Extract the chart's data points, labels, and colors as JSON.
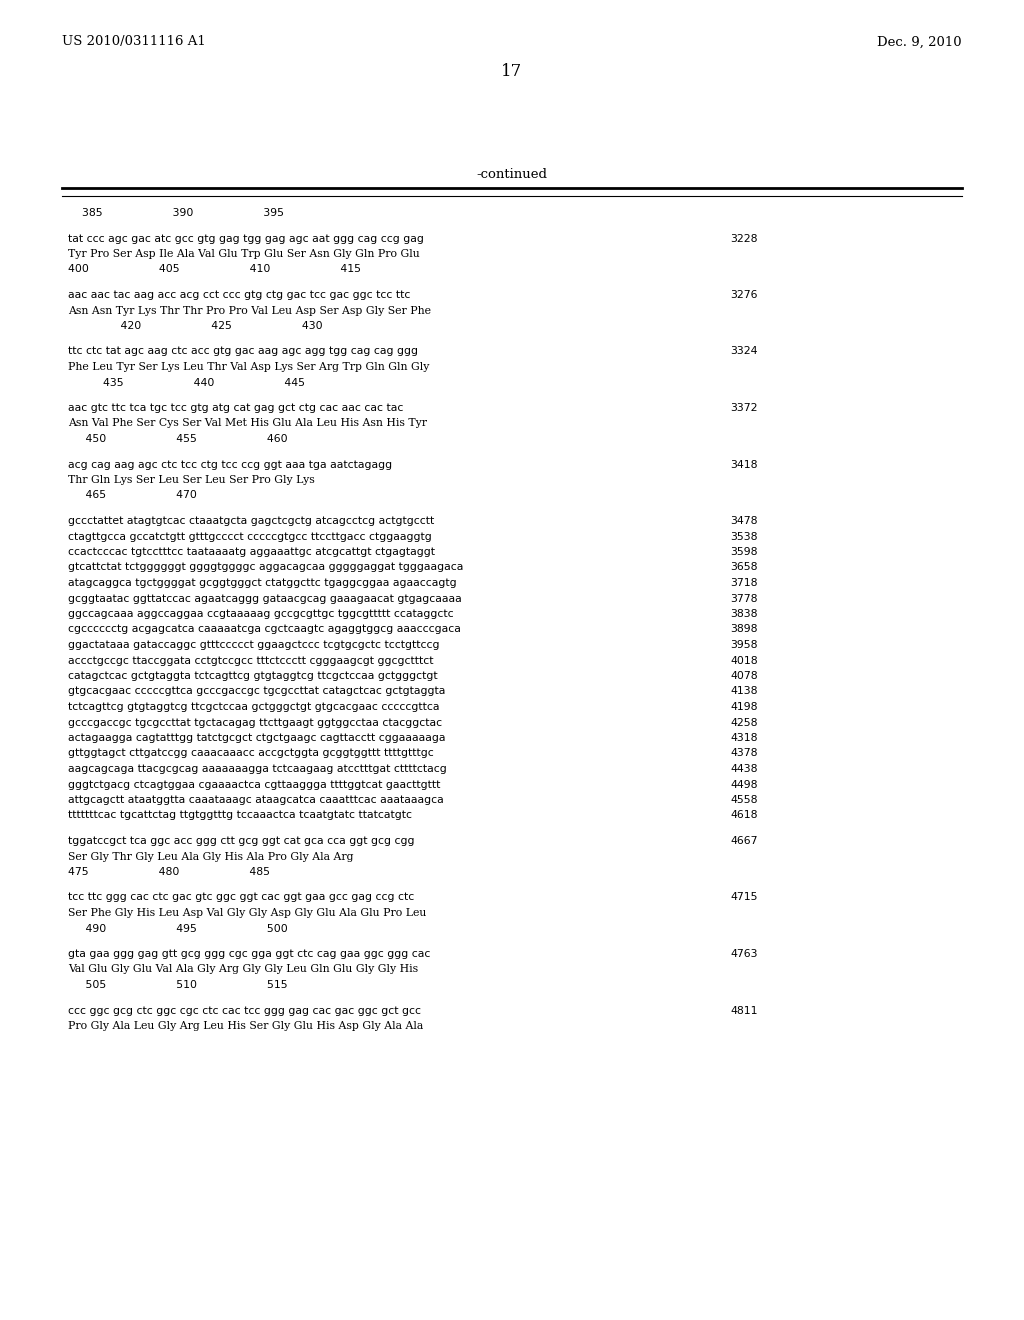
{
  "header_left": "US 2010/0311116 A1",
  "header_right": "Dec. 9, 2010",
  "page_number": "17",
  "continued_label": "-continued",
  "background_color": "#ffffff",
  "text_color": "#000000",
  "content": [
    {
      "type": "ruler",
      "text": "    385                    390                    395"
    },
    {
      "type": "blank"
    },
    {
      "type": "dna",
      "text": "tat ccc agc gac atc gcc gtg gag tgg gag agc aat ggg cag ccg gag",
      "num": "3228"
    },
    {
      "type": "aa",
      "text": "Tyr Pro Ser Asp Ile Ala Val Glu Trp Glu Ser Asn Gly Gln Pro Glu"
    },
    {
      "type": "ruler",
      "text": "400                    405                    410                    415"
    },
    {
      "type": "blank"
    },
    {
      "type": "dna",
      "text": "aac aac tac aag acc acg cct ccc gtg ctg gac tcc gac ggc tcc ttc",
      "num": "3276"
    },
    {
      "type": "aa",
      "text": "Asn Asn Tyr Lys Thr Thr Pro Pro Val Leu Asp Ser Asp Gly Ser Phe"
    },
    {
      "type": "ruler",
      "text": "               420                    425                    430"
    },
    {
      "type": "blank"
    },
    {
      "type": "dna",
      "text": "ttc ctc tat agc aag ctc acc gtg gac aag agc agg tgg cag cag ggg",
      "num": "3324"
    },
    {
      "type": "aa",
      "text": "Phe Leu Tyr Ser Lys Leu Thr Val Asp Lys Ser Arg Trp Gln Gln Gly"
    },
    {
      "type": "ruler",
      "text": "          435                    440                    445"
    },
    {
      "type": "blank"
    },
    {
      "type": "dna",
      "text": "aac gtc ttc tca tgc tcc gtg atg cat gag gct ctg cac aac cac tac",
      "num": "3372"
    },
    {
      "type": "aa",
      "text": "Asn Val Phe Ser Cys Ser Val Met His Glu Ala Leu His Asn His Tyr"
    },
    {
      "type": "ruler",
      "text": "     450                    455                    460"
    },
    {
      "type": "blank"
    },
    {
      "type": "dna",
      "text": "acg cag aag agc ctc tcc ctg tcc ccg ggt aaa tga aatctagagg",
      "num": "3418"
    },
    {
      "type": "aa",
      "text": "Thr Gln Lys Ser Leu Ser Leu Ser Pro Gly Lys"
    },
    {
      "type": "ruler",
      "text": "     465                    470"
    },
    {
      "type": "blank"
    },
    {
      "type": "plain",
      "text": "gccctattet atagtgtcac ctaaatgcta gagctcgctg atcagcctcg actgtgcctt",
      "num": "3478"
    },
    {
      "type": "plain",
      "text": "ctagttgcca gccatctgtt gtttgcccct cccccgtgcc ttccttgacc ctggaaggtg",
      "num": "3538"
    },
    {
      "type": "plain",
      "text": "ccactcccac tgtcctttcc taataaaatg aggaaattgc atcgcattgt ctgagtaggt",
      "num": "3598"
    },
    {
      "type": "plain",
      "text": "gtcattctat tctggggggt ggggtggggc aggacagcaa gggggaggat tgggaagaca",
      "num": "3658"
    },
    {
      "type": "plain",
      "text": "atagcaggca tgctggggat gcggtgggct ctatggcttc tgaggcggaa agaaccagtg",
      "num": "3718"
    },
    {
      "type": "plain",
      "text": "gcggtaatac ggttatccac agaatcaggg gataacgcag gaaagaacat gtgagcaaaa",
      "num": "3778"
    },
    {
      "type": "plain",
      "text": "ggccagcaaa aggccaggaa ccgtaaaaag gccgcgttgc tggcgttttt ccataggctc",
      "num": "3838"
    },
    {
      "type": "plain",
      "text": "cgcccccctg acgagcatca caaaaatcga cgctcaagtc agaggtggcg aaacccgaca",
      "num": "3898"
    },
    {
      "type": "plain",
      "text": "ggactataaa gataccaggc gtttccccct ggaagctccc tcgtgcgctc tcctgttccg",
      "num": "3958"
    },
    {
      "type": "plain",
      "text": "accctgccgc ttaccggata cctgtccgcc tttctccctt cgggaagcgt ggcgctttct",
      "num": "4018"
    },
    {
      "type": "plain",
      "text": "catagctcac gctgtaggta tctcagttcg gtgtaggtcg ttcgctccaa gctgggctgt",
      "num": "4078"
    },
    {
      "type": "plain",
      "text": "gtgcacgaac cccccgttca gcccgaccgc tgcgccttat catagctcac gctgtaggta",
      "num": "4138"
    },
    {
      "type": "plain",
      "text": "tctcagttcg gtgtaggtcg ttcgctccaa gctgggctgt gtgcacgaac cccccgttca",
      "num": "4198"
    },
    {
      "type": "plain",
      "text": "gcccgaccgc tgcgccttat tgctacagag ttcttgaagt ggtggcctaa ctacggctac",
      "num": "4258"
    },
    {
      "type": "plain",
      "text": "actagaagga cagtatttgg tatctgcgct ctgctgaagc cagttacctt cggaaaaaga",
      "num": "4318"
    },
    {
      "type": "plain",
      "text": "gttggtagct cttgatccgg caaacaaacc accgctggta gcggtggttt ttttgtttgc",
      "num": "4378"
    },
    {
      "type": "plain",
      "text": "aagcagcaga ttacgcgcag aaaaaaagga tctcaagaag atcctttgat cttttctacg",
      "num": "4438"
    },
    {
      "type": "plain",
      "text": "gggtctgacg ctcagtggaa cgaaaactca cgttaaggga ttttggtcat gaacttgttt",
      "num": "4498"
    },
    {
      "type": "plain",
      "text": "attgcagctt ataatggtta caaataaagc ataagcatca caaatttcac aaataaagca",
      "num": "4558"
    },
    {
      "type": "plain",
      "text": "tttttttcac tgcattctag ttgtggtttg tccaaactca tcaatgtatc ttatcatgtc",
      "num": "4618"
    },
    {
      "type": "blank"
    },
    {
      "type": "dna",
      "text": "tggatccgct tca ggc acc ggg ctt gcg ggt cat gca cca ggt gcg cgg",
      "num": "4667"
    },
    {
      "type": "aa",
      "text": "Ser Gly Thr Gly Leu Ala Gly His Ala Pro Gly Ala Arg"
    },
    {
      "type": "ruler",
      "text": "475                    480                    485"
    },
    {
      "type": "blank"
    },
    {
      "type": "dna",
      "text": "tcc ttc ggg cac ctc gac gtc ggc ggt cac ggt gaa gcc gag ccg ctc",
      "num": "4715"
    },
    {
      "type": "aa",
      "text": "Ser Phe Gly His Leu Asp Val Gly Gly Asp Gly Glu Ala Glu Pro Leu"
    },
    {
      "type": "ruler",
      "text": "     490                    495                    500"
    },
    {
      "type": "blank"
    },
    {
      "type": "dna",
      "text": "gta gaa ggg gag gtt gcg ggg cgc gga ggt ctc cag gaa ggc ggg cac",
      "num": "4763"
    },
    {
      "type": "aa",
      "text": "Val Glu Gly Glu Val Ala Gly Arg Gly Gly Leu Gln Glu Gly Gly His"
    },
    {
      "type": "ruler",
      "text": "     505                    510                    515"
    },
    {
      "type": "blank"
    },
    {
      "type": "dna",
      "text": "ccc ggc gcg ctc ggc cgc ctc cac tcc ggg gag cac gac ggc gct gcc",
      "num": "4811"
    },
    {
      "type": "aa",
      "text": "Pro Gly Ala Leu Gly Arg Leu His Ser Gly Glu His Asp Gly Ala Ala"
    }
  ]
}
